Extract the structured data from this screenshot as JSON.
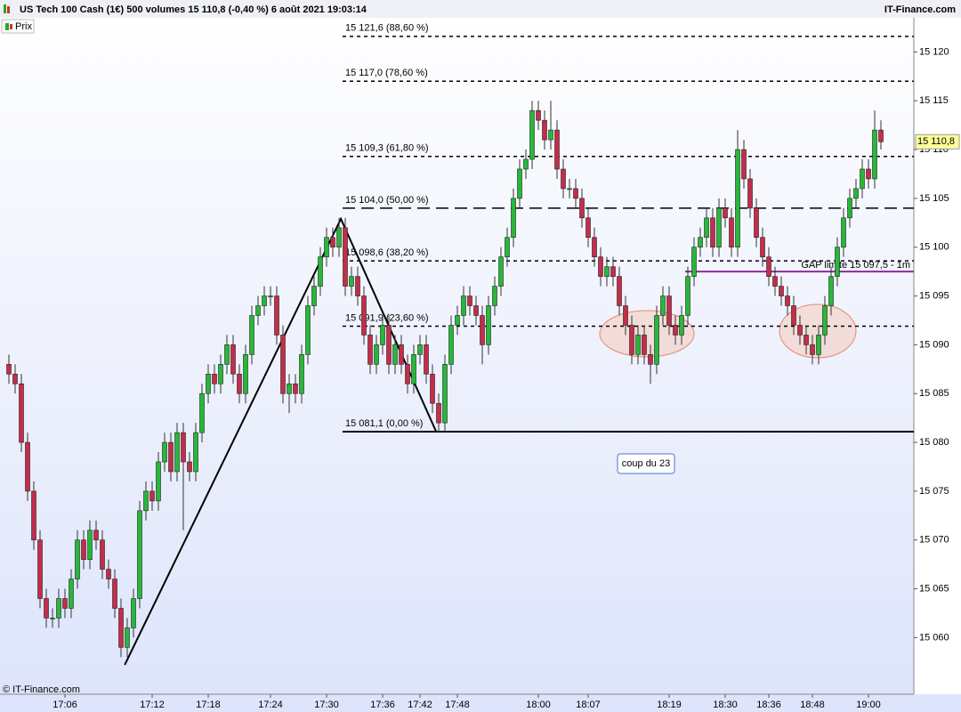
{
  "chart_data": {
    "type": "candlestick",
    "title": "US Tech 100 Cash (1€) 500 volumes 15 110,8 (-0,40 %) 6 août 2021 19:03:14",
    "brand": "IT-Finance.com",
    "footer": "© IT-Finance.com",
    "series_name": "Prix",
    "up_color": "#27b83a",
    "down_color": "#c42d4b",
    "ylim": [
      15054.2,
      15123.5
    ],
    "yticks": [
      {
        "value": 15060,
        "label": "15 060"
      },
      {
        "value": 15065,
        "label": "15 065"
      },
      {
        "value": 15070,
        "label": "15 070"
      },
      {
        "value": 15075,
        "label": "15 075"
      },
      {
        "value": 15080,
        "label": "15 080"
      },
      {
        "value": 15085,
        "label": "15 085"
      },
      {
        "value": 15090,
        "label": "15 090"
      },
      {
        "value": 15095,
        "label": "15 095"
      },
      {
        "value": 15100,
        "label": "15 100"
      },
      {
        "value": 15105,
        "label": "15 105"
      },
      {
        "value": 15110,
        "label": "15 110"
      },
      {
        "value": 15115,
        "label": "15 115"
      },
      {
        "value": 15120,
        "label": "15 120"
      }
    ],
    "categories": [
      null,
      null,
      null,
      null,
      null,
      null,
      null,
      null,
      null,
      "17:06",
      null,
      null,
      null,
      null,
      null,
      null,
      null,
      null,
      null,
      null,
      null,
      null,
      null,
      "17:12",
      null,
      null,
      null,
      null,
      null,
      null,
      null,
      null,
      "17:18",
      null,
      null,
      null,
      null,
      null,
      null,
      null,
      null,
      null,
      "17:24",
      null,
      null,
      null,
      null,
      null,
      null,
      null,
      null,
      "17:30",
      null,
      null,
      null,
      null,
      null,
      null,
      null,
      null,
      "17:36",
      null,
      null,
      null,
      null,
      null,
      "17:42",
      null,
      null,
      null,
      null,
      null,
      "17:48",
      null,
      null,
      null,
      null,
      null,
      null,
      null,
      null,
      null,
      null,
      null,
      null,
      "18:00",
      null,
      null,
      null,
      null,
      null,
      null,
      null,
      "18:07",
      null,
      null,
      null,
      null,
      null,
      null,
      null,
      null,
      null,
      null,
      null,
      null,
      "18:19",
      null,
      null,
      null,
      null,
      null,
      null,
      null,
      null,
      "18:30",
      null,
      null,
      null,
      null,
      null,
      null,
      "18:36",
      null,
      null,
      null,
      null,
      null,
      null,
      "18:48",
      null,
      null,
      null,
      null,
      null,
      null,
      null,
      null,
      "19:00",
      null,
      null
    ],
    "ohlc": [
      [
        15088,
        15089,
        15086,
        15087
      ],
      [
        15087,
        15088,
        15085,
        15086
      ],
      [
        15086,
        15087,
        15079,
        15080
      ],
      [
        15080,
        15081,
        15074,
        15075
      ],
      [
        15075,
        15076,
        15069,
        15070
      ],
      [
        15070,
        15071,
        15063,
        15064
      ],
      [
        15064,
        15065,
        15061,
        15062
      ],
      [
        15062,
        15063,
        15061,
        15062
      ],
      [
        15062,
        15065,
        15061,
        15064
      ],
      [
        15064,
        15065,
        15062,
        15063
      ],
      [
        15063,
        15067,
        15062,
        15066
      ],
      [
        15066,
        15071,
        15065,
        15070
      ],
      [
        15070,
        15071,
        15067,
        15068
      ],
      [
        15068,
        15072,
        15067,
        15071
      ],
      [
        15071,
        15072,
        15069,
        15070
      ],
      [
        15070,
        15071,
        15066,
        15067
      ],
      [
        15067,
        15068,
        15065,
        15066
      ],
      [
        15066,
        15067,
        15062,
        15063
      ],
      [
        15063,
        15064,
        15058,
        15059
      ],
      [
        15059,
        15062,
        15058,
        15061
      ],
      [
        15061,
        15065,
        15060,
        15064
      ],
      [
        15064,
        15074,
        15063,
        15073
      ],
      [
        15073,
        15076,
        15072,
        15075
      ],
      [
        15075,
        15076,
        15073,
        15074
      ],
      [
        15074,
        15079,
        15073,
        15078
      ],
      [
        15078,
        15081,
        15077,
        15080
      ],
      [
        15080,
        15081,
        15076,
        15077
      ],
      [
        15077,
        15082,
        15076,
        15081
      ],
      [
        15081,
        15082,
        15071,
        15078
      ],
      [
        15078,
        15079,
        15076,
        15077
      ],
      [
        15077,
        15082,
        15076,
        15081
      ],
      [
        15081,
        15086,
        15080,
        15085
      ],
      [
        15085,
        15088,
        15084,
        15087
      ],
      [
        15087,
        15088,
        15085,
        15086
      ],
      [
        15086,
        15089,
        15085,
        15088
      ],
      [
        15088,
        15091,
        15087,
        15090
      ],
      [
        15090,
        15091,
        15086,
        15087
      ],
      [
        15087,
        15088,
        15084,
        15085
      ],
      [
        15085,
        15090,
        15084,
        15089
      ],
      [
        15089,
        15094,
        15088,
        15093
      ],
      [
        15093,
        15095,
        15092,
        15094
      ],
      [
        15094,
        15096,
        15093,
        15095
      ],
      [
        15095,
        15096,
        15094,
        15095
      ],
      [
        15095,
        15096,
        15090,
        15091
      ],
      [
        15091,
        15092,
        15084,
        15085
      ],
      [
        15085,
        15087,
        15083,
        15086
      ],
      [
        15086,
        15087,
        15084,
        15085
      ],
      [
        15085,
        15090,
        15084,
        15089
      ],
      [
        15089,
        15095,
        15088,
        15094
      ],
      [
        15094,
        15097,
        15093,
        15096
      ],
      [
        15096,
        15100,
        15095,
        15099
      ],
      [
        15099,
        15102,
        15098,
        15101
      ],
      [
        15101,
        15102,
        15099,
        15100
      ],
      [
        15100,
        15103,
        15099,
        15102
      ],
      [
        15102,
        15103,
        15095,
        15096
      ],
      [
        15096,
        15098,
        15095,
        15097
      ],
      [
        15097,
        15098,
        15094,
        15095
      ],
      [
        15095,
        15096,
        15090,
        15091
      ],
      [
        15091,
        15092,
        15087,
        15088
      ],
      [
        15088,
        15091,
        15087,
        15090
      ],
      [
        15090,
        15093,
        15089,
        15092
      ],
      [
        15092,
        15093,
        15087,
        15088
      ],
      [
        15088,
        15091,
        15087,
        15090
      ],
      [
        15090,
        15091,
        15087,
        15088
      ],
      [
        15088,
        15089,
        15085,
        15086
      ],
      [
        15086,
        15090,
        15085,
        15089
      ],
      [
        15089,
        15091,
        15088,
        15090
      ],
      [
        15090,
        15091,
        15086,
        15087
      ],
      [
        15087,
        15088,
        15083,
        15084
      ],
      [
        15084,
        15085,
        15081,
        15082
      ],
      [
        15082,
        15089,
        15081,
        15088
      ],
      [
        15088,
        15093,
        15087,
        15092
      ],
      [
        15092,
        15094,
        15091,
        15093
      ],
      [
        15093,
        15096,
        15092,
        15095
      ],
      [
        15095,
        15096,
        15093,
        15094
      ],
      [
        15094,
        15095,
        15092,
        15093
      ],
      [
        15093,
        15094,
        15088,
        15090
      ],
      [
        15090,
        15095,
        15089,
        15094
      ],
      [
        15094,
        15097,
        15093,
        15096
      ],
      [
        15096,
        15100,
        15095,
        15099
      ],
      [
        15099,
        15102,
        15098,
        15101
      ],
      [
        15101,
        15106,
        15100,
        15105
      ],
      [
        15105,
        15109,
        15104,
        15108
      ],
      [
        15108,
        15110,
        15107,
        15109
      ],
      [
        15109,
        15115,
        15108,
        15114
      ],
      [
        15114,
        15115,
        15112,
        15113
      ],
      [
        15113,
        15114,
        15110,
        15111
      ],
      [
        15111,
        15115,
        15110,
        15112
      ],
      [
        15112,
        15113,
        15107,
        15108
      ],
      [
        15108,
        15109,
        15105,
        15106
      ],
      [
        15106,
        15107,
        15105,
        15106
      ],
      [
        15106,
        15107,
        15104,
        15105
      ],
      [
        15105,
        15106,
        15102,
        15103
      ],
      [
        15103,
        15104,
        15100,
        15101
      ],
      [
        15101,
        15102,
        15098,
        15099
      ],
      [
        15099,
        15100,
        15096,
        15097
      ],
      [
        15097,
        15099,
        15096,
        15098
      ],
      [
        15098,
        15099,
        15096,
        15097
      ],
      [
        15097,
        15098,
        15093,
        15094
      ],
      [
        15094,
        15095,
        15091,
        15092
      ],
      [
        15092,
        15093,
        15088,
        15089
      ],
      [
        15089,
        15092,
        15088,
        15091
      ],
      [
        15091,
        15092,
        15088,
        15089
      ],
      [
        15089,
        15090,
        15086,
        15088
      ],
      [
        15088,
        15094,
        15087,
        15093
      ],
      [
        15093,
        15096,
        15092,
        15095
      ],
      [
        15095,
        15096,
        15091,
        15092
      ],
      [
        15092,
        15093,
        15090,
        15091
      ],
      [
        15091,
        15094,
        15090,
        15093
      ],
      [
        15093,
        15098,
        15092,
        15097
      ],
      [
        15097,
        15101,
        15096,
        15100
      ],
      [
        15100,
        15102,
        15099,
        15101
      ],
      [
        15101,
        15104,
        15100,
        15103
      ],
      [
        15103,
        15104,
        15099,
        15100
      ],
      [
        15100,
        15105,
        15099,
        15104
      ],
      [
        15104,
        15105,
        15102,
        15103
      ],
      [
        15103,
        15104,
        15099,
        15100
      ],
      [
        15100,
        15112,
        15099,
        15110
      ],
      [
        15110,
        15111,
        15106,
        15107
      ],
      [
        15107,
        15108,
        15103,
        15104
      ],
      [
        15104,
        15105,
        15100,
        15101
      ],
      [
        15101,
        15102,
        15098,
        15099
      ],
      [
        15099,
        15100,
        15096,
        15097
      ],
      [
        15097,
        15098,
        15095,
        15096
      ],
      [
        15096,
        15097,
        15094,
        15095
      ],
      [
        15095,
        15096,
        15093,
        15094
      ],
      [
        15094,
        15095,
        15091,
        15092
      ],
      [
        15092,
        15093,
        15090,
        15091
      ],
      [
        15091,
        15092,
        15089,
        15090
      ],
      [
        15090,
        15091,
        15088,
        15089
      ],
      [
        15089,
        15092,
        15088,
        15091
      ],
      [
        15091,
        15095,
        15090,
        15094
      ],
      [
        15094,
        15098,
        15093,
        15097
      ],
      [
        15097,
        15101,
        15096,
        15100
      ],
      [
        15100,
        15104,
        15099,
        15103
      ],
      [
        15103,
        15106,
        15102,
        15105
      ],
      [
        15105,
        15107,
        15104,
        15106
      ],
      [
        15106,
        15109,
        15105,
        15108
      ],
      [
        15108,
        15109,
        15106,
        15107
      ],
      [
        15107,
        15114,
        15106,
        15112
      ],
      [
        15112,
        15113,
        15110,
        15110.8
      ]
    ],
    "fib_levels": [
      {
        "value": 15121.6,
        "label": "15 121,6 (88,60 %)",
        "style": "dotted"
      },
      {
        "value": 15117.0,
        "label": "15 117,0 (78,60 %)",
        "style": "dotted"
      },
      {
        "value": 15109.3,
        "label": "15 109,3 (61,80 %)",
        "style": "dotted"
      },
      {
        "value": 15104.0,
        "label": "15 104,0 (50,00 %)",
        "style": "dashed"
      },
      {
        "value": 15098.6,
        "label": "15 098,6 (38,20 %)",
        "style": "dotted"
      },
      {
        "value": 15091.9,
        "label": "15 091,9 (23,60 %)",
        "style": "dotted"
      },
      {
        "value": 15081.1,
        "label": "15 081,1 (0,00 %)",
        "style": "solid"
      }
    ],
    "gap": {
      "value": 15097.5,
      "label": "GAP limite 15 097,5 - 1m",
      "color": "#8e2a9e"
    },
    "zigzag": [
      15057.2,
      15102.9,
      15081.1
    ],
    "annotation": "coup du 23",
    "last_price": {
      "value": 15110.8,
      "label": "15 110,8"
    }
  }
}
